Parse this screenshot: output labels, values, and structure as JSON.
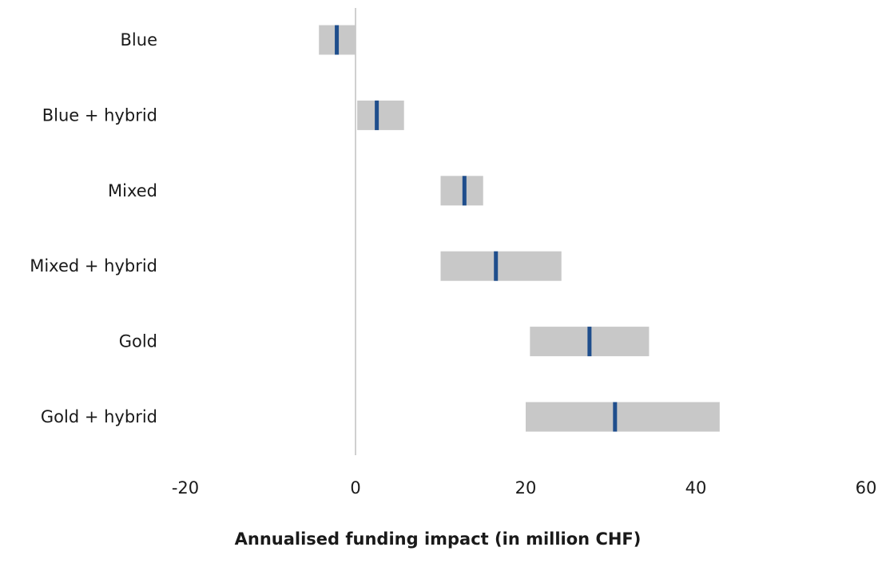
{
  "chart_data": {
    "type": "range-bar",
    "categories": [
      "Blue",
      "Blue + hybrid",
      "Mixed",
      "Mixed + hybrid",
      "Gold",
      "Gold + hybrid"
    ],
    "series": [
      {
        "low": -4.3,
        "high": 0.0,
        "value": -2.2
      },
      {
        "low": 0.2,
        "high": 5.7,
        "value": 2.5
      },
      {
        "low": 10.0,
        "high": 15.0,
        "value": 12.8
      },
      {
        "low": 10.0,
        "high": 24.2,
        "value": 16.5
      },
      {
        "low": 20.5,
        "high": 34.5,
        "value": 27.5
      },
      {
        "low": 20.0,
        "high": 42.8,
        "value": 30.5
      }
    ],
    "xlabel": "Annualised funding impact (in million CHF)",
    "ylabel": "",
    "xlim": [
      -20,
      60
    ],
    "xticks": [
      "-20",
      "0",
      "20",
      "40",
      "60"
    ],
    "grid": false,
    "zero_line": true,
    "legend": "none",
    "colors": {
      "range": "#c8c8c8",
      "marker": "#1f4e8c",
      "zero_line": "#d0d0d0",
      "text": "#1a1a1a"
    }
  }
}
